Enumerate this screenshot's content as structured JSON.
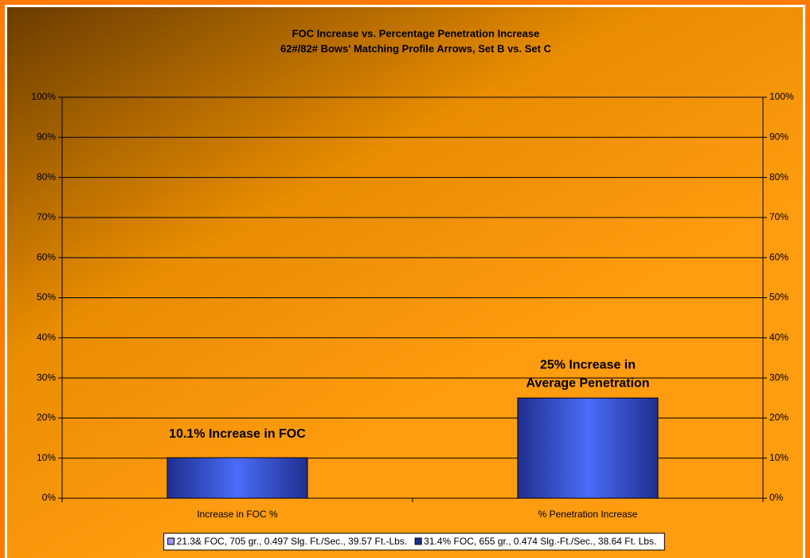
{
  "chart_data": {
    "type": "bar",
    "title": "FOC Increase vs. Percentage Penetration Increase",
    "subtitle": "62#/82# Bows' Matching Profile Arrows, Set B vs. Set C",
    "categories": [
      "Increase in FOC %",
      "% Penetration Increase"
    ],
    "series": [
      {
        "name": "21.3& FOC, 705 gr., 0.497 Slg. Ft./Sec., 39.57 Ft.-Lbs.",
        "color": "#9999ff",
        "values": [
          null,
          null
        ]
      },
      {
        "name": "31.4% FOC, 655 gr., 0.474 Slg.-Ft./Sec., 38.64 Ft. Lbs.",
        "color": "#1f2f8f",
        "values": [
          10.1,
          25
        ]
      }
    ],
    "annotations": [
      [
        "10.1% Increase in FOC"
      ],
      [
        "25% Increase in",
        "Average Penetration"
      ]
    ],
    "ylim": [
      0,
      100
    ],
    "yticks": [
      {
        "value": 0,
        "label": "0%"
      },
      {
        "value": 10,
        "label": "10%"
      },
      {
        "value": 20,
        "label": "20%"
      },
      {
        "value": 30,
        "label": "30%"
      },
      {
        "value": 40,
        "label": "40%"
      },
      {
        "value": 50,
        "label": "50%"
      },
      {
        "value": 60,
        "label": "60%"
      },
      {
        "value": 70,
        "label": "70%"
      },
      {
        "value": 80,
        "label": "80%"
      },
      {
        "value": 90,
        "label": "90%"
      },
      {
        "value": 100,
        "label": "100%"
      }
    ],
    "y2lim": [
      0,
      100
    ],
    "y2ticks": [
      {
        "value": 0,
        "label": "0%"
      },
      {
        "value": 10,
        "label": "10%"
      },
      {
        "value": 20,
        "label": "20%"
      },
      {
        "value": 30,
        "label": "30%"
      },
      {
        "value": 40,
        "label": "40%"
      },
      {
        "value": 50,
        "label": "50%"
      },
      {
        "value": 60,
        "label": "60%"
      },
      {
        "value": 70,
        "label": "70%"
      },
      {
        "value": 80,
        "label": "80%"
      },
      {
        "value": 90,
        "label": "90%"
      },
      {
        "value": 100,
        "label": "100%"
      }
    ],
    "grid": true,
    "legend": "bottom"
  }
}
